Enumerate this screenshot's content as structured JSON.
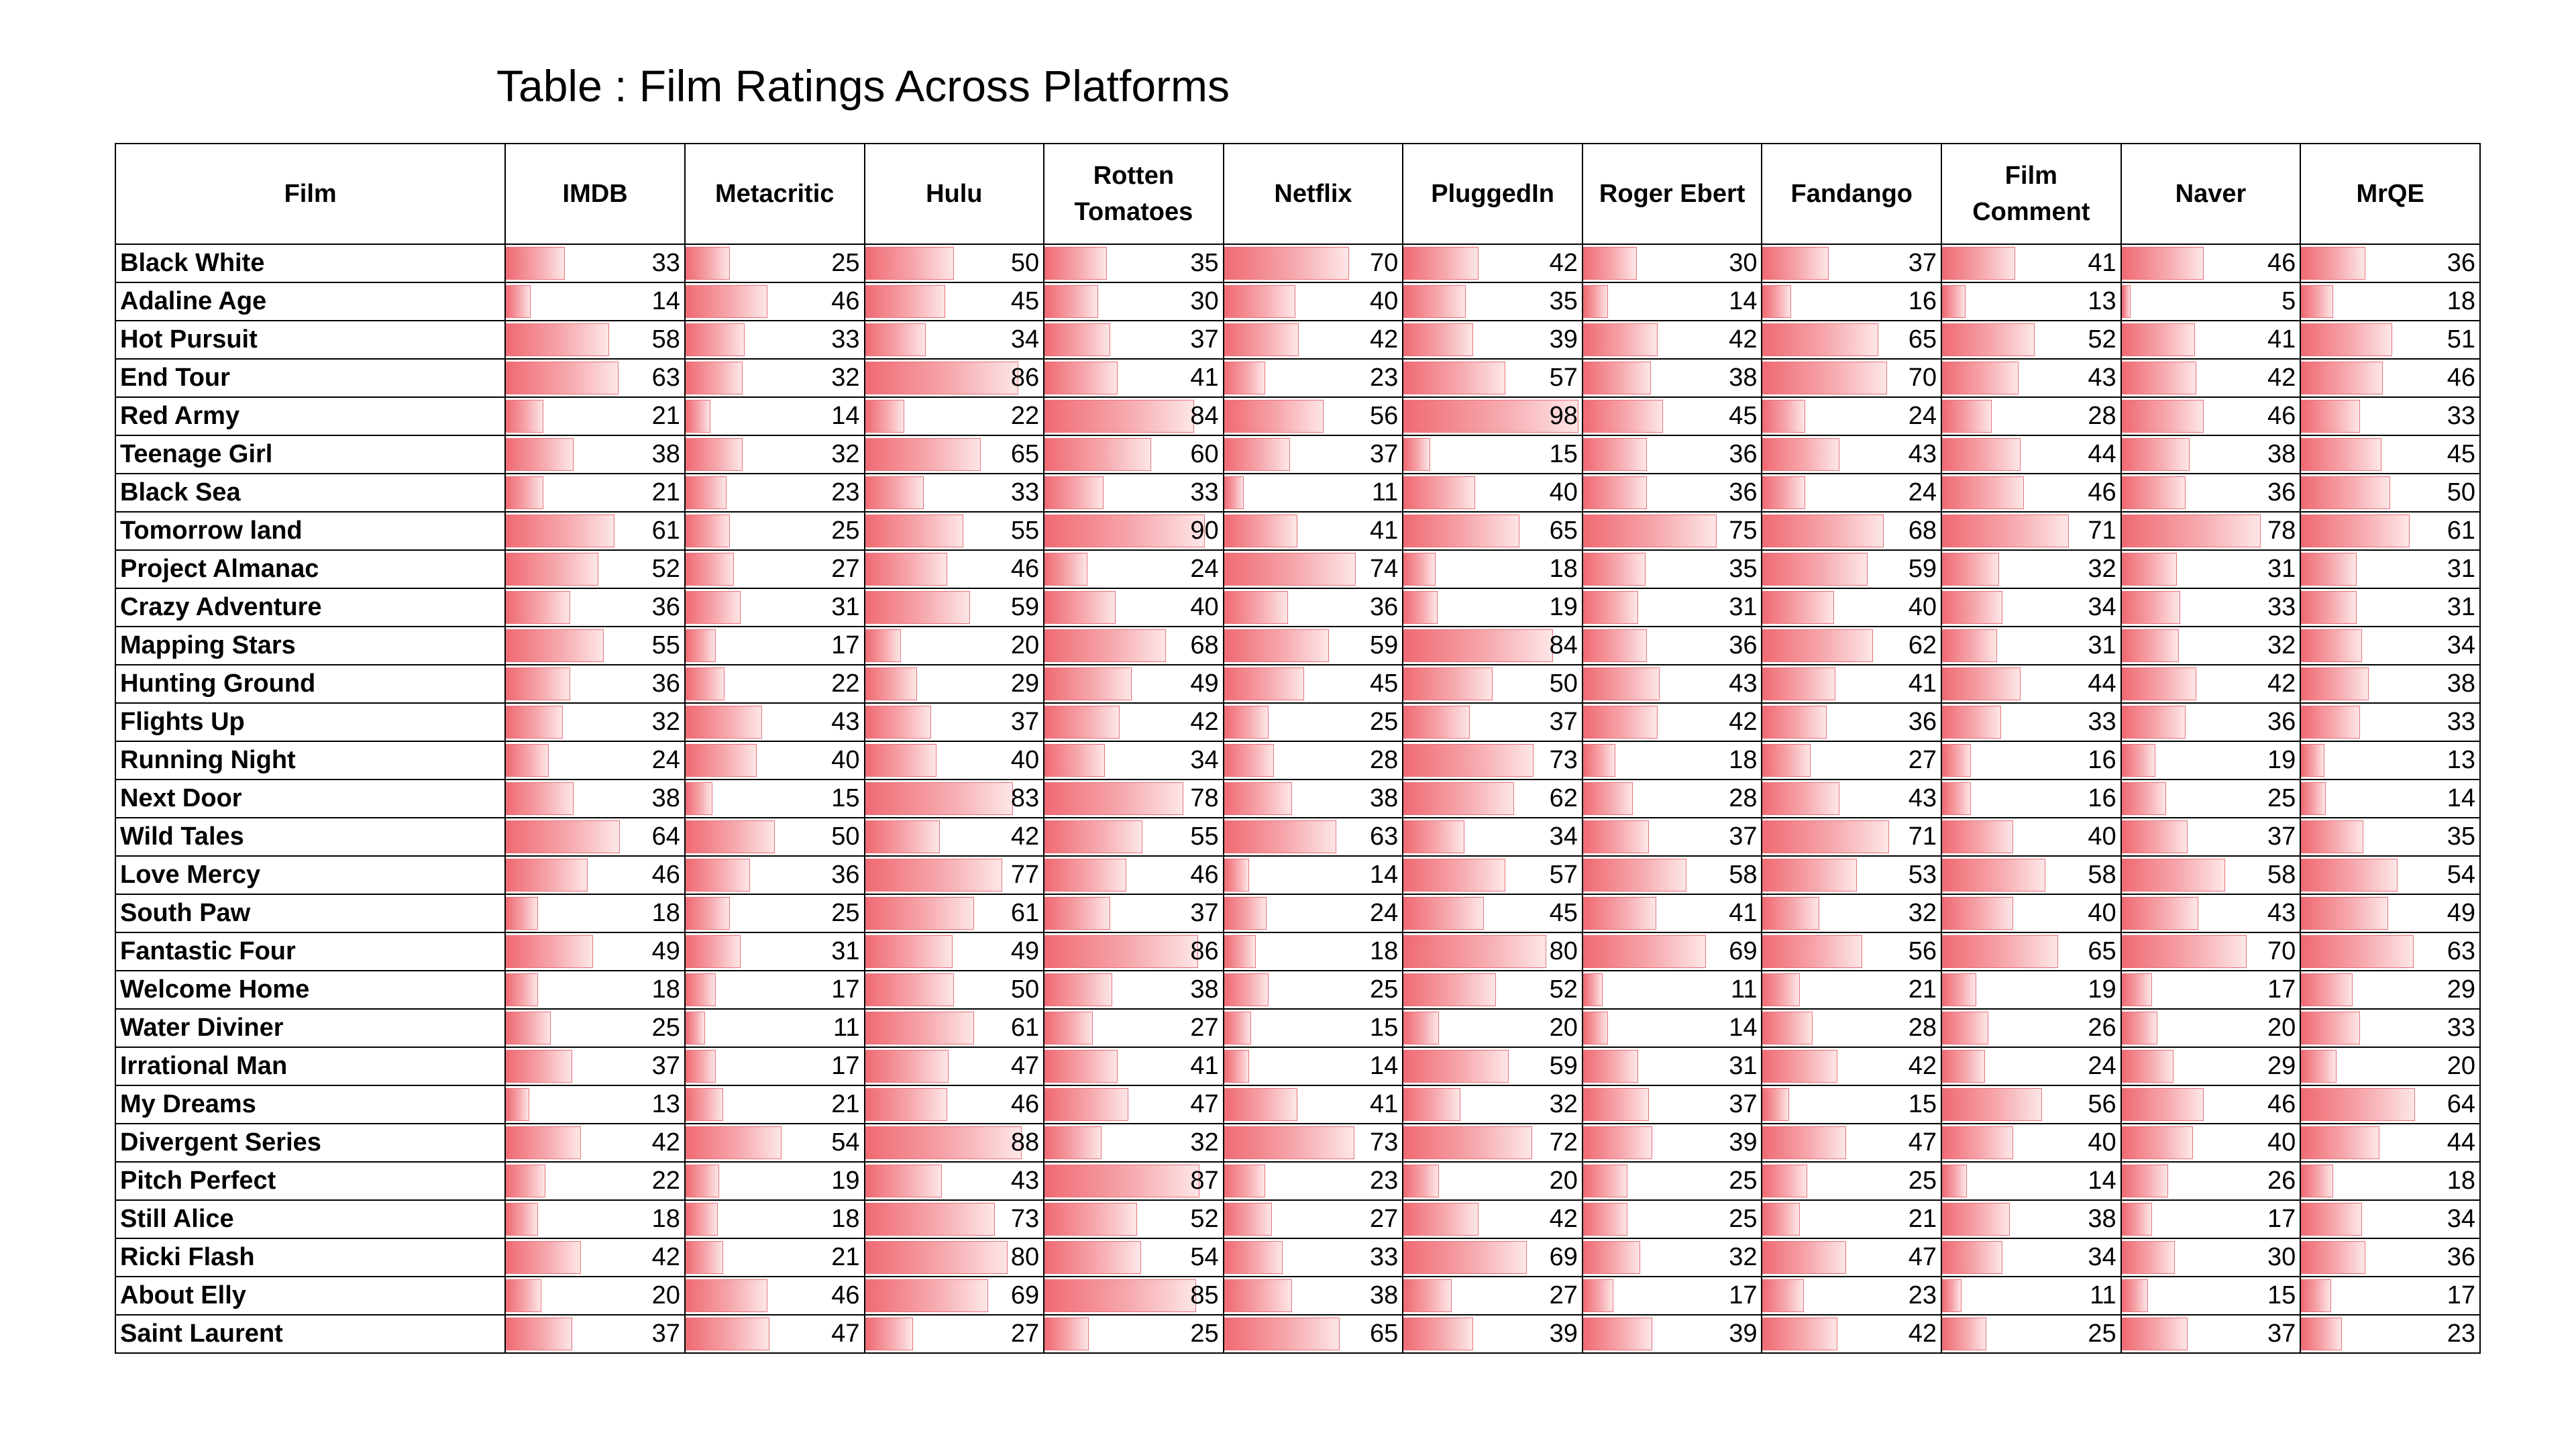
{
  "chart_data": {
    "type": "table",
    "title": "Table : Film Ratings Across Platforms",
    "columns": [
      [
        "Film"
      ],
      [
        "IMDB"
      ],
      [
        "Metacritic"
      ],
      [
        "Hulu"
      ],
      [
        "Rotten",
        "Tomatoes"
      ],
      [
        "Netflix"
      ],
      [
        "PluggedIn"
      ],
      [
        "Roger Ebert"
      ],
      [
        "Fandango"
      ],
      [
        "Film",
        "Comment"
      ],
      [
        "Naver"
      ],
      [
        "MrQE"
      ]
    ],
    "bar_max": 100,
    "bar_color": "#f06a73",
    "rows": [
      {
        "film": "Black White",
        "values": [
          33,
          25,
          50,
          35,
          70,
          42,
          30,
          37,
          41,
          46,
          36
        ]
      },
      {
        "film": "Adaline Age",
        "values": [
          14,
          46,
          45,
          30,
          40,
          35,
          14,
          16,
          13,
          5,
          18
        ]
      },
      {
        "film": "Hot Pursuit",
        "values": [
          58,
          33,
          34,
          37,
          42,
          39,
          42,
          65,
          52,
          41,
          51
        ]
      },
      {
        "film": "End Tour",
        "values": [
          63,
          32,
          86,
          41,
          23,
          57,
          38,
          70,
          43,
          42,
          46
        ]
      },
      {
        "film": "Red Army",
        "values": [
          21,
          14,
          22,
          84,
          56,
          98,
          45,
          24,
          28,
          46,
          33
        ]
      },
      {
        "film": "Teenage Girl",
        "values": [
          38,
          32,
          65,
          60,
          37,
          15,
          36,
          43,
          44,
          38,
          45
        ]
      },
      {
        "film": "Black Sea",
        "values": [
          21,
          23,
          33,
          33,
          11,
          40,
          36,
          24,
          46,
          36,
          50
        ]
      },
      {
        "film": "Tomorrow land",
        "values": [
          61,
          25,
          55,
          90,
          41,
          65,
          75,
          68,
          71,
          78,
          61
        ]
      },
      {
        "film": "Project Almanac",
        "values": [
          52,
          27,
          46,
          24,
          74,
          18,
          35,
          59,
          32,
          31,
          31
        ]
      },
      {
        "film": "Crazy Adventure",
        "values": [
          36,
          31,
          59,
          40,
          36,
          19,
          31,
          40,
          34,
          33,
          31
        ]
      },
      {
        "film": "Mapping Stars",
        "values": [
          55,
          17,
          20,
          68,
          59,
          84,
          36,
          62,
          31,
          32,
          34
        ]
      },
      {
        "film": "Hunting Ground",
        "values": [
          36,
          22,
          29,
          49,
          45,
          50,
          43,
          41,
          44,
          42,
          38
        ]
      },
      {
        "film": "Flights Up",
        "values": [
          32,
          43,
          37,
          42,
          25,
          37,
          42,
          36,
          33,
          36,
          33
        ]
      },
      {
        "film": "Running Night",
        "values": [
          24,
          40,
          40,
          34,
          28,
          73,
          18,
          27,
          16,
          19,
          13
        ]
      },
      {
        "film": "Next Door",
        "values": [
          38,
          15,
          83,
          78,
          38,
          62,
          28,
          43,
          16,
          25,
          14
        ]
      },
      {
        "film": "Wild Tales",
        "values": [
          64,
          50,
          42,
          55,
          63,
          34,
          37,
          71,
          40,
          37,
          35
        ]
      },
      {
        "film": "Love Mercy",
        "values": [
          46,
          36,
          77,
          46,
          14,
          57,
          58,
          53,
          58,
          58,
          54
        ]
      },
      {
        "film": "South Paw",
        "values": [
          18,
          25,
          61,
          37,
          24,
          45,
          41,
          32,
          40,
          43,
          49
        ]
      },
      {
        "film": "Fantastic Four",
        "values": [
          49,
          31,
          49,
          86,
          18,
          80,
          69,
          56,
          65,
          70,
          63
        ]
      },
      {
        "film": "Welcome Home",
        "values": [
          18,
          17,
          50,
          38,
          25,
          52,
          11,
          21,
          19,
          17,
          29
        ]
      },
      {
        "film": "Water Diviner",
        "values": [
          25,
          11,
          61,
          27,
          15,
          20,
          14,
          28,
          26,
          20,
          33
        ]
      },
      {
        "film": "Irrational Man",
        "values": [
          37,
          17,
          47,
          41,
          14,
          59,
          31,
          42,
          24,
          29,
          20
        ]
      },
      {
        "film": "My Dreams",
        "values": [
          13,
          21,
          46,
          47,
          41,
          32,
          37,
          15,
          56,
          46,
          64
        ]
      },
      {
        "film": "Divergent Series",
        "values": [
          42,
          54,
          88,
          32,
          73,
          72,
          39,
          47,
          40,
          40,
          44
        ]
      },
      {
        "film": "Pitch Perfect",
        "values": [
          22,
          19,
          43,
          87,
          23,
          20,
          25,
          25,
          14,
          26,
          18
        ]
      },
      {
        "film": "Still Alice",
        "values": [
          18,
          18,
          73,
          52,
          27,
          42,
          25,
          21,
          38,
          17,
          34
        ]
      },
      {
        "film": "Ricki Flash",
        "values": [
          42,
          21,
          80,
          54,
          33,
          69,
          32,
          47,
          34,
          30,
          36
        ]
      },
      {
        "film": "About Elly",
        "values": [
          20,
          46,
          69,
          85,
          38,
          27,
          17,
          23,
          11,
          15,
          17
        ]
      },
      {
        "film": "Saint Laurent",
        "values": [
          37,
          47,
          27,
          25,
          65,
          39,
          39,
          42,
          25,
          37,
          23
        ]
      }
    ]
  }
}
